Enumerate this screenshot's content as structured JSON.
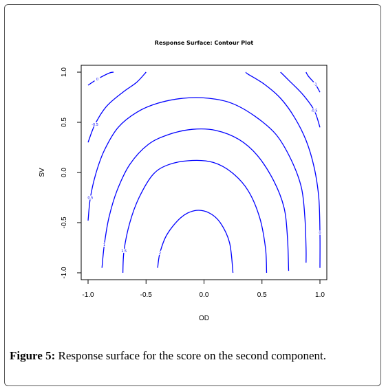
{
  "figure": {
    "caption_label": "Figure 5:",
    "caption_text": " Response surface for the score on the second component."
  },
  "chart_data": {
    "type": "contour",
    "title": "Response Surface: Contour Plot",
    "xlabel": "OD",
    "ylabel": "SV",
    "xlim": [
      -1.0,
      1.0
    ],
    "ylim": [
      -1.0,
      1.0
    ],
    "x_ticks": [
      "-1.0",
      "-0.5",
      "0.0",
      "0.5",
      "1.0"
    ],
    "y_ticks": [
      "-1.0",
      "-0.5",
      "0.0",
      "0.5",
      "1.0"
    ],
    "line_color": "#0000ff",
    "grid": false,
    "legend": "none",
    "contours": [
      {
        "label": "2",
        "points": [
          [
            -0.4,
            -0.95
          ],
          [
            -0.38,
            -0.8
          ],
          [
            -0.32,
            -0.62
          ],
          [
            -0.2,
            -0.45
          ],
          [
            -0.08,
            -0.38
          ],
          [
            0.04,
            -0.4
          ],
          [
            0.14,
            -0.5
          ],
          [
            0.22,
            -0.7
          ],
          [
            0.25,
            -1.0
          ]
        ]
      },
      {
        "label": "1.5",
        "points": [
          [
            -0.7,
            -1.0
          ],
          [
            -0.69,
            -0.78
          ],
          [
            -0.64,
            -0.5
          ],
          [
            -0.56,
            -0.25
          ],
          [
            -0.44,
            -0.02
          ],
          [
            -0.3,
            0.08
          ],
          [
            -0.1,
            0.12
          ],
          [
            0.08,
            0.1
          ],
          [
            0.24,
            0.0
          ],
          [
            0.38,
            -0.18
          ],
          [
            0.48,
            -0.45
          ],
          [
            0.53,
            -0.75
          ],
          [
            0.54,
            -1.0
          ]
        ]
      },
      {
        "label": "1",
        "points": [
          [
            -0.88,
            -0.95
          ],
          [
            -0.86,
            -0.72
          ],
          [
            -0.82,
            -0.45
          ],
          [
            -0.75,
            -0.18
          ],
          [
            -0.64,
            0.08
          ],
          [
            -0.48,
            0.28
          ],
          [
            -0.3,
            0.38
          ],
          [
            -0.1,
            0.43
          ],
          [
            0.1,
            0.42
          ],
          [
            0.3,
            0.33
          ],
          [
            0.46,
            0.17
          ],
          [
            0.6,
            -0.08
          ],
          [
            0.69,
            -0.35
          ],
          [
            0.72,
            -0.65
          ],
          [
            0.73,
            -0.98
          ]
        ]
      },
      {
        "label": "0.5",
        "points": [
          [
            -1.0,
            -0.48
          ],
          [
            -0.98,
            -0.25
          ],
          [
            -0.93,
            0.0
          ],
          [
            -0.86,
            0.22
          ],
          [
            -0.74,
            0.45
          ],
          [
            -0.58,
            0.6
          ],
          [
            -0.4,
            0.69
          ],
          [
            -0.18,
            0.74
          ],
          [
            0.04,
            0.74
          ],
          [
            0.24,
            0.69
          ],
          [
            0.44,
            0.56
          ],
          [
            0.62,
            0.38
          ],
          [
            0.75,
            0.13
          ],
          [
            0.84,
            -0.15
          ],
          [
            0.87,
            -0.45
          ],
          [
            0.88,
            -0.75
          ],
          [
            0.88,
            -0.9
          ]
        ]
      },
      {
        "label": "0",
        "points": [
          [
            -1.0,
            0.87
          ],
          [
            -0.92,
            0.93
          ],
          [
            -0.82,
            0.99
          ],
          [
            -0.78,
            1.0
          ]
        ]
      },
      {
        "label": "0",
        "points": [
          [
            1.0,
            -0.95
          ],
          [
            1.0,
            -0.6
          ],
          [
            0.99,
            -0.25
          ],
          [
            0.95,
            0.05
          ],
          [
            0.88,
            0.32
          ],
          [
            0.78,
            0.55
          ],
          [
            0.66,
            0.74
          ],
          [
            0.52,
            0.88
          ],
          [
            0.38,
            0.98
          ],
          [
            0.36,
            1.0
          ]
        ]
      },
      {
        "label": "-0.5",
        "points": [
          [
            -1.0,
            0.3
          ],
          [
            -0.94,
            0.48
          ],
          [
            -0.84,
            0.66
          ],
          [
            -0.7,
            0.8
          ],
          [
            -0.58,
            0.9
          ],
          [
            -0.5,
            1.0
          ]
        ]
      },
      {
        "label": "-0.5",
        "points": [
          [
            1.0,
            0.45
          ],
          [
            0.95,
            0.62
          ],
          [
            0.85,
            0.78
          ],
          [
            0.73,
            0.92
          ],
          [
            0.66,
            1.0
          ]
        ]
      },
      {
        "label": "-1",
        "points": [
          [
            1.0,
            0.8
          ],
          [
            0.96,
            0.88
          ],
          [
            0.9,
            0.96
          ],
          [
            0.88,
            1.0
          ]
        ]
      }
    ]
  }
}
